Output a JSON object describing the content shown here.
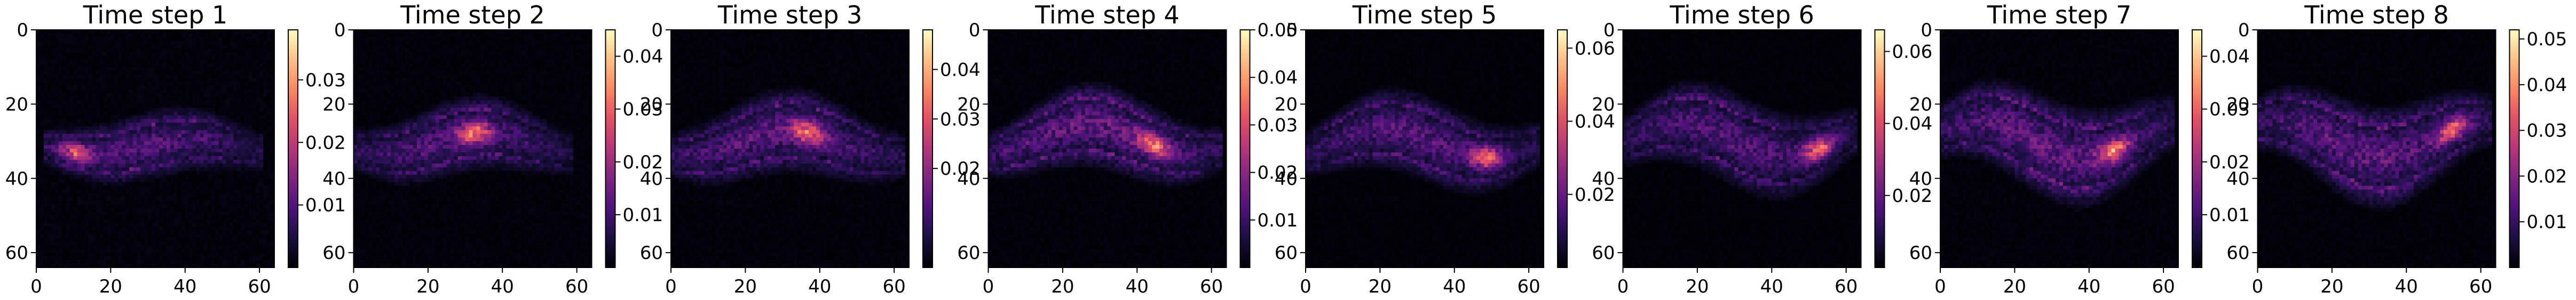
{
  "chart_data": {
    "type": "heatmap",
    "colormap": "magma",
    "grid": false,
    "panels": [
      {
        "title": "Time step 1",
        "xlim": [
          0,
          64
        ],
        "ylim": [
          64,
          0
        ],
        "xticks": [
          "0",
          "20",
          "40",
          "60"
        ],
        "yticks": [
          "0",
          "20",
          "40",
          "60"
        ],
        "vmin": 0,
        "vmax": 0.038,
        "colorbar_ticks": [
          0.01,
          0.02,
          0.03
        ],
        "colorbar_tick_labels": [
          "0.01",
          "0.02",
          "0.03"
        ],
        "plume": {
          "start": 2,
          "end": 60,
          "center_row": 31,
          "width": 8,
          "peak": 0.026,
          "wave": 2,
          "focus_col": 10,
          "focus_value": 0.03
        }
      },
      {
        "title": "Time step 2",
        "xlim": [
          0,
          64
        ],
        "ylim": [
          64,
          0
        ],
        "xticks": [
          "0",
          "20",
          "40",
          "60"
        ],
        "yticks": [
          "0",
          "20",
          "40",
          "60"
        ],
        "vmin": 0,
        "vmax": 0.045,
        "colorbar_ticks": [
          0.01,
          0.02,
          0.03,
          0.04
        ],
        "colorbar_tick_labels": [
          "0.01",
          "0.02",
          "0.03",
          "0.04"
        ],
        "plume": {
          "start": 0,
          "end": 58,
          "center_row": 30,
          "width": 9,
          "peak": 0.03,
          "wave": 3,
          "focus_col": 32,
          "focus_value": 0.04
        }
      },
      {
        "title": "Time step 3",
        "xlim": [
          0,
          64
        ],
        "ylim": [
          64,
          0
        ],
        "xticks": [
          "0",
          "20",
          "40",
          "60"
        ],
        "yticks": [
          "0",
          "20",
          "40",
          "60"
        ],
        "vmin": 0,
        "vmax": 0.048,
        "colorbar_ticks": [
          0.02,
          0.03,
          0.04
        ],
        "colorbar_tick_labels": [
          "0.02",
          "0.03",
          "0.04"
        ],
        "plume": {
          "start": 0,
          "end": 62,
          "center_row": 30,
          "width": 10,
          "peak": 0.035,
          "wave": 3.5,
          "focus_col": 36,
          "focus_value": 0.045
        }
      },
      {
        "title": "Time step 4",
        "xlim": [
          0,
          64
        ],
        "ylim": [
          64,
          0
        ],
        "xticks": [
          "0",
          "20",
          "40",
          "60"
        ],
        "yticks": [
          "0",
          "20",
          "40",
          "60"
        ],
        "vmin": 0,
        "vmax": 0.05,
        "colorbar_ticks": [
          0.01,
          0.02,
          0.03,
          0.04,
          0.05
        ],
        "colorbar_tick_labels": [
          "0.01",
          "0.02",
          "0.03",
          "0.04",
          "0.05"
        ],
        "plume": {
          "start": 0,
          "end": 62,
          "center_row": 29,
          "width": 10,
          "peak": 0.04,
          "wave": 4,
          "focus_col": 44,
          "focus_value": 0.048
        }
      },
      {
        "title": "Time step 5",
        "xlim": [
          0,
          64
        ],
        "ylim": [
          64,
          0
        ],
        "xticks": [
          "0",
          "20",
          "40",
          "60"
        ],
        "yticks": [
          "0",
          "20",
          "40",
          "60"
        ],
        "vmin": 0,
        "vmax": 0.065,
        "colorbar_ticks": [
          0.02,
          0.04,
          0.06
        ],
        "colorbar_tick_labels": [
          "0.02",
          "0.04",
          "0.06"
        ],
        "plume": {
          "start": 0,
          "end": 62,
          "center_row": 30,
          "width": 10,
          "peak": 0.045,
          "wave": 4,
          "focus_col": 48,
          "focus_value": 0.06
        }
      },
      {
        "title": "Time step 6",
        "xlim": [
          0,
          64
        ],
        "ylim": [
          64,
          0
        ],
        "xticks": [
          "0",
          "20",
          "40",
          "60"
        ],
        "yticks": [
          "0",
          "20",
          "40",
          "60"
        ],
        "vmin": 0,
        "vmax": 0.066,
        "colorbar_ticks": [
          0.02,
          0.04,
          0.06
        ],
        "colorbar_tick_labels": [
          "0.02",
          "0.04",
          "0.06"
        ],
        "plume": {
          "start": 0,
          "end": 62,
          "center_row": 29,
          "width": 11,
          "peak": 0.045,
          "wave": 4.5,
          "focus_col": 52,
          "focus_value": 0.062
        }
      },
      {
        "title": "Time step 7",
        "xlim": [
          0,
          64
        ],
        "ylim": [
          64,
          0
        ],
        "xticks": [
          "0",
          "20",
          "40",
          "60"
        ],
        "yticks": [
          "0",
          "20",
          "40",
          "60"
        ],
        "vmin": 0,
        "vmax": 0.045,
        "colorbar_ticks": [
          0.01,
          0.02,
          0.03,
          0.04
        ],
        "colorbar_tick_labels": [
          "0.01",
          "0.02",
          "0.03",
          "0.04"
        ],
        "plume": {
          "start": 0,
          "end": 62,
          "center_row": 29,
          "width": 12,
          "peak": 0.035,
          "wave": 5,
          "focus_col": 46,
          "focus_value": 0.042
        }
      },
      {
        "title": "Time step 8",
        "xlim": [
          0,
          64
        ],
        "ylim": [
          64,
          0
        ],
        "xticks": [
          "0",
          "20",
          "40",
          "60"
        ],
        "yticks": [
          "0",
          "20",
          "40",
          "60"
        ],
        "vmin": 0,
        "vmax": 0.052,
        "colorbar_ticks": [
          0.01,
          0.02,
          0.03,
          0.04,
          0.05
        ],
        "colorbar_tick_labels": [
          "0.01",
          "0.02",
          "0.03",
          "0.04",
          "0.05"
        ],
        "plume": {
          "start": 0,
          "end": 62,
          "center_row": 29,
          "width": 12,
          "peak": 0.04,
          "wave": 5,
          "focus_col": 52,
          "focus_value": 0.05
        }
      }
    ]
  }
}
